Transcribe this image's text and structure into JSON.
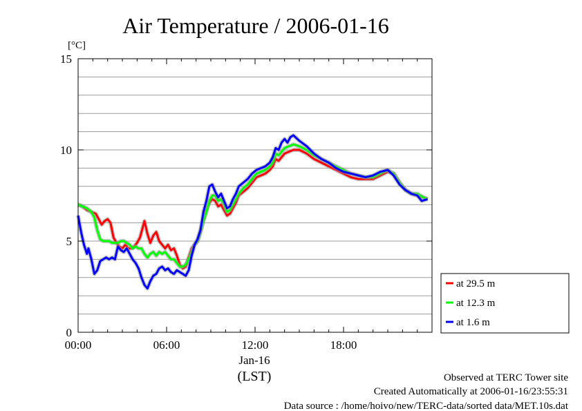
{
  "chart_data": {
    "type": "line",
    "title": "Air Temperature / 2006-01-16",
    "ylabel": "[°C]",
    "xlabel": "(LST)",
    "date_label": "Jan-16",
    "xlim": [
      0,
      24
    ],
    "ylim": [
      0,
      15
    ],
    "x_ticks": [
      {
        "x": 0,
        "label": "00:00"
      },
      {
        "x": 6,
        "label": "06:00"
      },
      {
        "x": 12,
        "label": "12:00"
      },
      {
        "x": 18,
        "label": "18:00"
      }
    ],
    "y_ticks": [
      {
        "y": 0,
        "label": "0"
      },
      {
        "y": 5,
        "label": "5"
      },
      {
        "y": 10,
        "label": "10"
      },
      {
        "y": 15,
        "label": "15"
      }
    ],
    "grid": true,
    "legend_position": "right",
    "series": [
      {
        "name": "at 29.5 m",
        "color": "#ff0000",
        "points": [
          [
            0,
            7.0
          ],
          [
            0.3,
            6.9
          ],
          [
            0.6,
            6.7
          ],
          [
            0.9,
            6.6
          ],
          [
            1.2,
            6.5
          ],
          [
            1.4,
            6.2
          ],
          [
            1.6,
            5.9
          ],
          [
            1.8,
            6.1
          ],
          [
            2.0,
            6.2
          ],
          [
            2.2,
            6.0
          ],
          [
            2.4,
            5.2
          ],
          [
            2.6,
            4.9
          ],
          [
            2.8,
            4.7
          ],
          [
            3.0,
            4.6
          ],
          [
            3.2,
            4.8
          ],
          [
            3.4,
            4.6
          ],
          [
            3.6,
            4.6
          ],
          [
            3.8,
            4.7
          ],
          [
            4.0,
            4.9
          ],
          [
            4.2,
            5.2
          ],
          [
            4.4,
            5.8
          ],
          [
            4.5,
            6.1
          ],
          [
            4.7,
            5.4
          ],
          [
            4.9,
            4.9
          ],
          [
            5.1,
            5.3
          ],
          [
            5.3,
            5.5
          ],
          [
            5.5,
            5.0
          ],
          [
            5.7,
            4.8
          ],
          [
            5.9,
            4.6
          ],
          [
            6.1,
            4.8
          ],
          [
            6.3,
            4.5
          ],
          [
            6.5,
            4.6
          ],
          [
            6.7,
            4.2
          ],
          [
            6.9,
            3.7
          ],
          [
            7.1,
            3.5
          ],
          [
            7.3,
            3.6
          ],
          [
            7.5,
            4.1
          ],
          [
            7.7,
            4.6
          ],
          [
            7.9,
            4.8
          ],
          [
            8.1,
            5.0
          ],
          [
            8.3,
            5.6
          ],
          [
            8.5,
            6.2
          ],
          [
            8.7,
            6.7
          ],
          [
            8.9,
            7.1
          ],
          [
            9.1,
            7.3
          ],
          [
            9.3,
            7.2
          ],
          [
            9.5,
            6.9
          ],
          [
            9.7,
            7.0
          ],
          [
            9.9,
            6.7
          ],
          [
            10.1,
            6.4
          ],
          [
            10.3,
            6.5
          ],
          [
            10.5,
            6.8
          ],
          [
            10.7,
            7.1
          ],
          [
            10.9,
            7.5
          ],
          [
            11.2,
            7.7
          ],
          [
            11.5,
            7.9
          ],
          [
            11.8,
            8.2
          ],
          [
            12.1,
            8.5
          ],
          [
            12.4,
            8.6
          ],
          [
            12.7,
            8.7
          ],
          [
            13.0,
            8.9
          ],
          [
            13.2,
            9.1
          ],
          [
            13.4,
            9.5
          ],
          [
            13.6,
            9.4
          ],
          [
            13.8,
            9.6
          ],
          [
            14.0,
            9.8
          ],
          [
            14.3,
            9.9
          ],
          [
            14.6,
            10.0
          ],
          [
            15.0,
            10.0
          ],
          [
            15.5,
            9.8
          ],
          [
            16.0,
            9.5
          ],
          [
            16.5,
            9.3
          ],
          [
            17.0,
            9.1
          ],
          [
            17.5,
            8.9
          ],
          [
            18.0,
            8.7
          ],
          [
            18.5,
            8.5
          ],
          [
            19.0,
            8.4
          ],
          [
            19.5,
            8.4
          ],
          [
            20.0,
            8.4
          ],
          [
            20.5,
            8.6
          ],
          [
            21.0,
            8.8
          ],
          [
            21.4,
            8.7
          ],
          [
            21.8,
            8.2
          ],
          [
            22.2,
            7.8
          ],
          [
            22.6,
            7.6
          ],
          [
            23.0,
            7.5
          ],
          [
            23.4,
            7.4
          ],
          [
            23.7,
            7.3
          ]
        ]
      },
      {
        "name": "at 12.3 m",
        "color": "#00ff00",
        "points": [
          [
            0,
            7.0
          ],
          [
            0.3,
            6.9
          ],
          [
            0.6,
            6.8
          ],
          [
            0.9,
            6.6
          ],
          [
            1.1,
            6.3
          ],
          [
            1.3,
            5.6
          ],
          [
            1.5,
            5.1
          ],
          [
            1.7,
            5.0
          ],
          [
            1.9,
            5.0
          ],
          [
            2.1,
            5.0
          ],
          [
            2.3,
            4.9
          ],
          [
            2.5,
            4.9
          ],
          [
            2.7,
            4.9
          ],
          [
            2.9,
            5.0
          ],
          [
            3.1,
            5.0
          ],
          [
            3.3,
            4.9
          ],
          [
            3.5,
            4.8
          ],
          [
            3.7,
            4.6
          ],
          [
            3.9,
            4.7
          ],
          [
            4.1,
            4.6
          ],
          [
            4.3,
            4.6
          ],
          [
            4.5,
            4.3
          ],
          [
            4.7,
            4.1
          ],
          [
            4.9,
            4.3
          ],
          [
            5.1,
            4.4
          ],
          [
            5.3,
            4.2
          ],
          [
            5.5,
            4.4
          ],
          [
            5.7,
            4.3
          ],
          [
            5.9,
            4.4
          ],
          [
            6.1,
            4.2
          ],
          [
            6.3,
            4.0
          ],
          [
            6.5,
            4.0
          ],
          [
            6.7,
            3.8
          ],
          [
            6.9,
            3.6
          ],
          [
            7.1,
            3.6
          ],
          [
            7.3,
            3.7
          ],
          [
            7.5,
            4.0
          ],
          [
            7.7,
            4.4
          ],
          [
            7.9,
            4.8
          ],
          [
            8.1,
            5.0
          ],
          [
            8.3,
            5.5
          ],
          [
            8.5,
            6.1
          ],
          [
            8.7,
            6.6
          ],
          [
            8.9,
            7.2
          ],
          [
            9.1,
            7.5
          ],
          [
            9.3,
            7.5
          ],
          [
            9.5,
            7.2
          ],
          [
            9.7,
            7.3
          ],
          [
            9.9,
            7.0
          ],
          [
            10.1,
            6.6
          ],
          [
            10.3,
            6.7
          ],
          [
            10.5,
            7.0
          ],
          [
            10.7,
            7.3
          ],
          [
            10.9,
            7.6
          ],
          [
            11.2,
            7.9
          ],
          [
            11.5,
            8.1
          ],
          [
            11.8,
            8.4
          ],
          [
            12.1,
            8.7
          ],
          [
            12.4,
            8.8
          ],
          [
            12.7,
            8.9
          ],
          [
            13.0,
            9.1
          ],
          [
            13.2,
            9.3
          ],
          [
            13.4,
            9.8
          ],
          [
            13.6,
            9.7
          ],
          [
            13.8,
            9.9
          ],
          [
            14.0,
            10.1
          ],
          [
            14.3,
            10.2
          ],
          [
            14.6,
            10.3
          ],
          [
            15.0,
            10.2
          ],
          [
            15.5,
            10.0
          ],
          [
            16.0,
            9.7
          ],
          [
            16.5,
            9.5
          ],
          [
            17.0,
            9.3
          ],
          [
            17.5,
            9.1
          ],
          [
            18.0,
            8.9
          ],
          [
            18.5,
            8.7
          ],
          [
            19.0,
            8.6
          ],
          [
            19.5,
            8.5
          ],
          [
            20.0,
            8.5
          ],
          [
            20.5,
            8.7
          ],
          [
            21.0,
            8.9
          ],
          [
            21.4,
            8.7
          ],
          [
            21.8,
            8.2
          ],
          [
            22.2,
            7.8
          ],
          [
            22.6,
            7.6
          ],
          [
            23.0,
            7.6
          ],
          [
            23.4,
            7.4
          ],
          [
            23.7,
            7.3
          ]
        ]
      },
      {
        "name": "at 1.6 m",
        "color": "#0000ff",
        "points": [
          [
            0,
            6.4
          ],
          [
            0.2,
            5.5
          ],
          [
            0.4,
            4.8
          ],
          [
            0.6,
            4.3
          ],
          [
            0.7,
            4.6
          ],
          [
            0.9,
            4.0
          ],
          [
            1.1,
            3.2
          ],
          [
            1.3,
            3.4
          ],
          [
            1.5,
            3.9
          ],
          [
            1.7,
            4.0
          ],
          [
            1.9,
            4.1
          ],
          [
            2.1,
            4.0
          ],
          [
            2.3,
            4.1
          ],
          [
            2.5,
            4.0
          ],
          [
            2.7,
            4.7
          ],
          [
            2.9,
            4.5
          ],
          [
            3.1,
            4.4
          ],
          [
            3.3,
            4.6
          ],
          [
            3.5,
            4.3
          ],
          [
            3.7,
            4.0
          ],
          [
            3.9,
            3.8
          ],
          [
            4.1,
            3.5
          ],
          [
            4.3,
            3.0
          ],
          [
            4.5,
            2.6
          ],
          [
            4.7,
            2.4
          ],
          [
            4.9,
            2.8
          ],
          [
            5.1,
            3.1
          ],
          [
            5.3,
            3.2
          ],
          [
            5.5,
            3.5
          ],
          [
            5.7,
            3.6
          ],
          [
            5.9,
            3.4
          ],
          [
            6.1,
            3.5
          ],
          [
            6.3,
            3.3
          ],
          [
            6.5,
            3.2
          ],
          [
            6.7,
            3.4
          ],
          [
            6.9,
            3.3
          ],
          [
            7.1,
            3.2
          ],
          [
            7.3,
            3.1
          ],
          [
            7.5,
            3.4
          ],
          [
            7.7,
            4.2
          ],
          [
            7.9,
            4.8
          ],
          [
            8.1,
            5.1
          ],
          [
            8.3,
            5.6
          ],
          [
            8.5,
            6.6
          ],
          [
            8.7,
            7.2
          ],
          [
            8.9,
            8.0
          ],
          [
            9.1,
            8.1
          ],
          [
            9.3,
            7.7
          ],
          [
            9.5,
            7.4
          ],
          [
            9.7,
            7.6
          ],
          [
            9.9,
            7.2
          ],
          [
            10.1,
            6.8
          ],
          [
            10.3,
            6.9
          ],
          [
            10.5,
            7.3
          ],
          [
            10.7,
            7.6
          ],
          [
            10.9,
            8.0
          ],
          [
            11.2,
            8.2
          ],
          [
            11.5,
            8.4
          ],
          [
            11.8,
            8.7
          ],
          [
            12.1,
            8.9
          ],
          [
            12.4,
            9.0
          ],
          [
            12.7,
            9.1
          ],
          [
            13.0,
            9.3
          ],
          [
            13.2,
            9.6
          ],
          [
            13.4,
            10.1
          ],
          [
            13.6,
            10.0
          ],
          [
            13.8,
            10.4
          ],
          [
            14.0,
            10.6
          ],
          [
            14.2,
            10.4
          ],
          [
            14.4,
            10.7
          ],
          [
            14.6,
            10.8
          ],
          [
            15.0,
            10.5
          ],
          [
            15.5,
            10.2
          ],
          [
            16.0,
            9.8
          ],
          [
            16.5,
            9.5
          ],
          [
            17.0,
            9.3
          ],
          [
            17.5,
            9.0
          ],
          [
            18.0,
            8.8
          ],
          [
            18.5,
            8.7
          ],
          [
            19.0,
            8.6
          ],
          [
            19.5,
            8.5
          ],
          [
            20.0,
            8.6
          ],
          [
            20.5,
            8.8
          ],
          [
            21.0,
            8.9
          ],
          [
            21.4,
            8.6
          ],
          [
            21.8,
            8.1
          ],
          [
            22.2,
            7.8
          ],
          [
            22.6,
            7.6
          ],
          [
            23.0,
            7.5
          ],
          [
            23.3,
            7.2
          ],
          [
            23.7,
            7.3
          ]
        ]
      }
    ]
  },
  "footer": {
    "line1": "Observed at TERC Tower site",
    "line2": "Created Automatically at 2006-01-16/23:55:31",
    "line3": "Data source : /home/hoivo/new/TERC-data/sorted  data/MET.10s.dat"
  }
}
